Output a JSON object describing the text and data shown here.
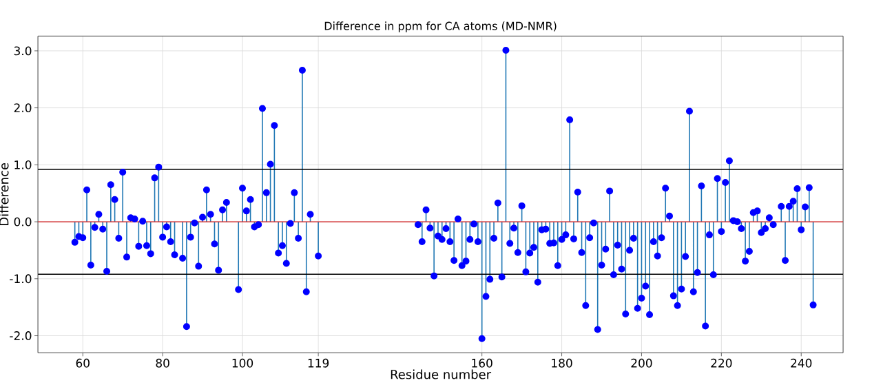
{
  "chart_data": {
    "type": "lollipop",
    "title": "Difference in ppm for CA atoms (MD-NMR)",
    "xlabel": "Residue number",
    "ylabel": "Difference",
    "series": [
      {
        "color": "#0000ff",
        "x": [
          58,
          59,
          60,
          61,
          62,
          63,
          64,
          65,
          66,
          67,
          68,
          69,
          70,
          71,
          72,
          73,
          74,
          75,
          76,
          77,
          78,
          79,
          80,
          81,
          82,
          83,
          85,
          86,
          87,
          88,
          89,
          90,
          91,
          92,
          93,
          94,
          95,
          96,
          99,
          100,
          101,
          102,
          103,
          104,
          105,
          106,
          107,
          108,
          109,
          110,
          111,
          112,
          113,
          114,
          115,
          116,
          117,
          119,
          144,
          145,
          146,
          147,
          148,
          149,
          150,
          151,
          152,
          153,
          154,
          155,
          156,
          157,
          158,
          159,
          160,
          161,
          162,
          163,
          164,
          165,
          166,
          167,
          168,
          169,
          170,
          171,
          172,
          173,
          174,
          175,
          176,
          177,
          178,
          179,
          180,
          181,
          182,
          183,
          184,
          185,
          186,
          187,
          188,
          189,
          190,
          191,
          192,
          193,
          194,
          195,
          196,
          197,
          198,
          199,
          200,
          201,
          202,
          203,
          204,
          205,
          206,
          207,
          208,
          209,
          210,
          211,
          212,
          213,
          214,
          215,
          216,
          217,
          218,
          219,
          220,
          221,
          222,
          223,
          224,
          225,
          226,
          227,
          228,
          229,
          230,
          231,
          232,
          233,
          235,
          236,
          237,
          238,
          239,
          240,
          241,
          242,
          243
        ],
        "values": [
          -0.36,
          -0.26,
          -0.28,
          0.56,
          -0.76,
          -0.1,
          0.13,
          -0.13,
          -0.87,
          0.65,
          0.39,
          -0.29,
          0.87,
          -0.62,
          0.07,
          0.05,
          -0.43,
          0.01,
          -0.42,
          -0.56,
          0.77,
          0.96,
          -0.27,
          -0.09,
          -0.35,
          -0.58,
          -0.64,
          -1.84,
          -0.27,
          -0.02,
          -0.78,
          0.08,
          0.56,
          0.13,
          -0.39,
          -0.85,
          0.21,
          0.34,
          -1.19,
          0.59,
          0.19,
          0.39,
          -0.09,
          -0.05,
          1.99,
          0.51,
          1.01,
          1.69,
          -0.55,
          -0.42,
          -0.73,
          -0.03,
          0.51,
          -0.29,
          2.66,
          -1.23,
          0.13,
          -0.6,
          -0.05,
          -0.35,
          0.21,
          -0.11,
          -0.95,
          -0.25,
          -0.31,
          -0.12,
          -0.35,
          -0.68,
          0.05,
          -0.77,
          -0.69,
          -0.31,
          -0.04,
          -0.35,
          -2.05,
          -1.31,
          -1.01,
          -0.29,
          0.33,
          -0.97,
          3.01,
          -0.38,
          -0.11,
          -0.54,
          0.28,
          -0.88,
          -0.55,
          -0.45,
          -1.06,
          -0.14,
          -0.13,
          -0.38,
          -0.37,
          -0.77,
          -0.31,
          -0.23,
          1.79,
          -0.3,
          0.52,
          -0.54,
          -1.47,
          -0.28,
          -0.02,
          -1.89,
          -0.76,
          -0.48,
          0.54,
          -0.93,
          -0.41,
          -0.83,
          -1.62,
          -0.5,
          -0.29,
          -1.52,
          -1.34,
          -1.13,
          -1.63,
          -0.35,
          -0.6,
          -0.28,
          0.59,
          0.1,
          -1.3,
          -1.47,
          -1.18,
          -0.61,
          1.94,
          -1.23,
          -0.89,
          0.63,
          -1.83,
          -0.23,
          -0.93,
          0.76,
          -0.17,
          0.69,
          1.07,
          0.02,
          0.0,
          -0.12,
          -0.69,
          -0.52,
          0.16,
          0.19,
          -0.19,
          -0.12,
          0.07,
          -0.05,
          0.27,
          -0.68,
          0.27,
          0.36,
          0.58,
          -0.14,
          0.26,
          0.6,
          -1.46
        ]
      }
    ],
    "xlim": [
      48.75,
      250.5
    ],
    "ylim": [
      -2.3,
      3.26
    ],
    "xticks": [
      60,
      80,
      100,
      119,
      160,
      180,
      200,
      220,
      240
    ],
    "yticks": [
      {
        "value": -2,
        "label": "-2.0"
      },
      {
        "value": -1,
        "label": "-1.0"
      },
      {
        "value": 0,
        "label": "0.0"
      },
      {
        "value": 1,
        "label": "1.0"
      },
      {
        "value": 2,
        "label": "2.0"
      },
      {
        "value": 3,
        "label": "3.0"
      }
    ],
    "ref_lines": [
      {
        "axis": "y",
        "value": 0.92,
        "color": "#000000"
      },
      {
        "axis": "y",
        "value": -0.92,
        "color": "#000000"
      },
      {
        "axis": "y",
        "value": 0,
        "color": "#d62728"
      }
    ],
    "grid": true,
    "marker": "circle"
  }
}
